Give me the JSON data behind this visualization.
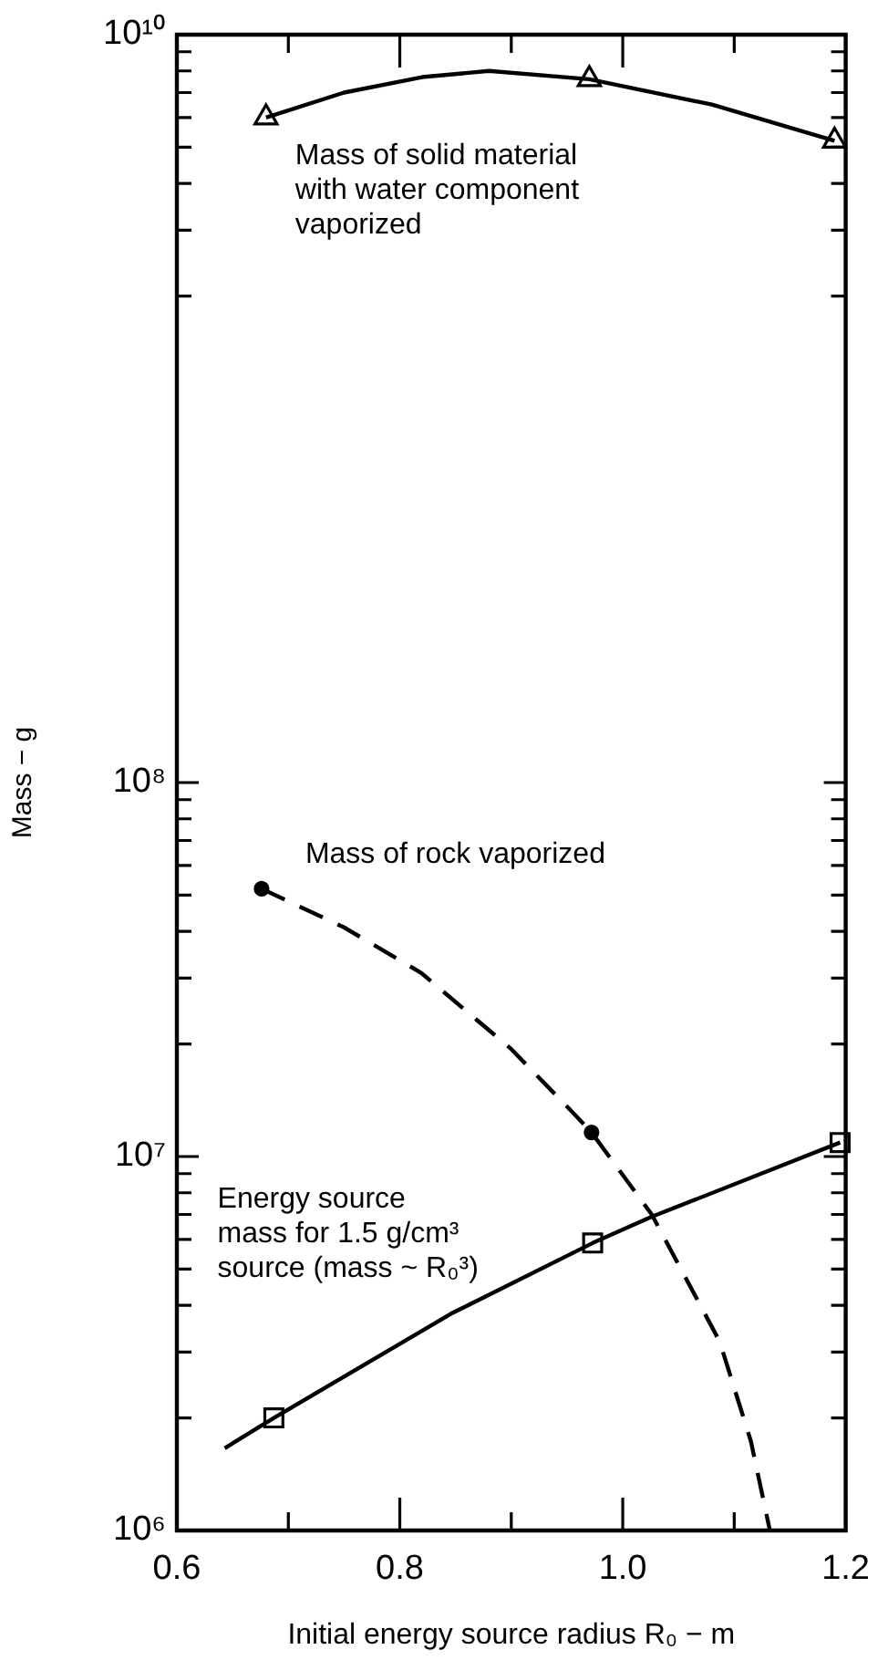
{
  "chart_data": {
    "type": "line",
    "xlabel": "Initial energy source radius R₀ − m",
    "ylabel": "Mass − g",
    "log": "y",
    "grid": false,
    "legend": false,
    "xlim": [
      0.6,
      1.2
    ],
    "xticks": [
      0.6,
      {
        "value": 0.7,
        "label": null
      },
      0.8,
      {
        "value": 0.9,
        "label": null
      },
      {
        "value": 1.0,
        "label": "1.0"
      },
      {
        "value": 1.1,
        "label": null
      },
      1.2
    ],
    "ylim": [
      1000000,
      10000000000
    ],
    "yticks": [
      {
        "value": 1000000,
        "label": "10⁶"
      },
      {
        "value": 2000000,
        "label": null
      },
      {
        "value": 3000000,
        "label": null
      },
      {
        "value": 4000000,
        "label": null
      },
      {
        "value": 5000000,
        "label": null
      },
      {
        "value": 6000000,
        "label": null
      },
      {
        "value": 7000000,
        "label": null
      },
      {
        "value": 8000000,
        "label": null
      },
      {
        "value": 9000000,
        "label": null
      },
      {
        "value": 10000000,
        "label": "10⁷"
      },
      {
        "value": 20000000,
        "label": null
      },
      {
        "value": 30000000,
        "label": null
      },
      {
        "value": 40000000,
        "label": null
      },
      {
        "value": 50000000,
        "label": null
      },
      {
        "value": 60000000,
        "label": null
      },
      {
        "value": 70000000,
        "label": null
      },
      {
        "value": 80000000,
        "label": null
      },
      {
        "value": 90000000,
        "label": null
      },
      {
        "value": 100000000,
        "label": "10⁸"
      },
      {
        "value": 2000000000,
        "label": null
      },
      {
        "value": 3000000000,
        "label": null
      },
      {
        "value": 4000000000,
        "label": null
      },
      {
        "value": 5000000000,
        "label": null
      },
      {
        "value": 6000000000,
        "label": null
      },
      {
        "value": 7000000000,
        "label": null
      },
      {
        "value": 8000000000,
        "label": null
      },
      {
        "value": 9000000000,
        "label": null
      },
      {
        "value": 10000000000,
        "label": "10¹⁰"
      }
    ],
    "series": [
      {
        "name": "Mass of solid material\nwith water component\nvaporized",
        "color": "#000000",
        "marker": "none",
        "line_style": "solid",
        "x": [
          0.68,
          0.75,
          0.82,
          0.88,
          0.97,
          1.08,
          1.19
        ],
        "values": [
          6000000000,
          7000000000,
          7700000000,
          8000000000,
          7600000000,
          6500000000,
          5200000000
        ]
      },
      {
        "type": "scatter",
        "color": "#000000",
        "marker": "triangle",
        "x": [
          0.68,
          0.97,
          1.19
        ],
        "values": [
          6000000000,
          7600000000,
          5200000000
        ]
      },
      {
        "name": "Mass of rock vaporized",
        "color": "#000000",
        "marker": "none",
        "line_style": "dashed",
        "x": [
          0.676,
          0.75,
          0.819,
          0.899,
          0.947,
          0.972,
          1.026,
          1.087,
          1.115,
          1.132
        ],
        "values": [
          52000000,
          41000000,
          31000000,
          19500000,
          13900000,
          11600000,
          7000000,
          3200000,
          1730000,
          1000000
        ]
      },
      {
        "type": "scatter",
        "color": "#000000",
        "marker": "circle",
        "x": [
          0.676,
          0.972
        ],
        "values": [
          52000000,
          11600000
        ]
      },
      {
        "name": "Energy source\nmass for 1.5 g/cm³\nsource (mass ~ R₀³)",
        "color": "#000000",
        "marker": "none",
        "line_style": "solid",
        "x": [
          0.643,
          0.687,
          0.846,
          0.973,
          1.026,
          1.195
        ],
        "values": [
          1660000,
          2000000,
          3800000,
          5870000,
          6900000,
          10900000
        ]
      },
      {
        "type": "scatter",
        "color": "#000000",
        "marker": "square",
        "x": [
          0.687,
          0.973,
          1.195
        ],
        "values": [
          2000000,
          5870000,
          10900000
        ]
      }
    ]
  }
}
